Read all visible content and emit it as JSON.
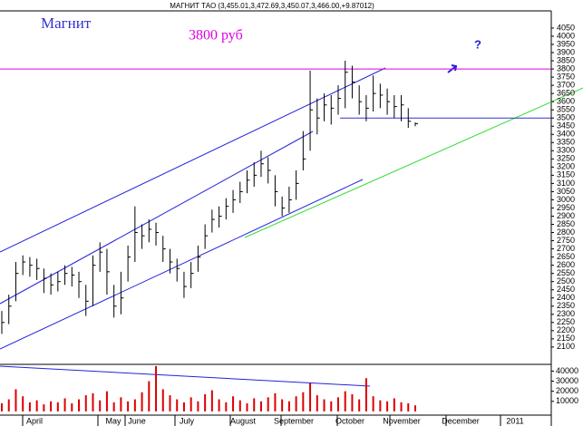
{
  "chart_data": {
    "type": "ohlc",
    "title": "МАГНИТ ТАО (3,455.01,3,472.69,3,450.07,3,466.00,+9.87012)",
    "annotations": [
      "Магнит",
      "3800 руб",
      "?"
    ],
    "resistance": 3800,
    "support": 3500,
    "months": [
      "April",
      "May",
      "June",
      "July",
      "August",
      "September",
      "October",
      "November",
      "December",
      "2011"
    ],
    "high": [
      2320,
      2420,
      2620,
      2660,
      2650,
      2640,
      2580,
      2550,
      2560,
      2600,
      2590,
      2560,
      2480,
      2660,
      2740,
      2700,
      2480,
      2560,
      2720,
      2960,
      2850,
      2880,
      2860,
      2780,
      2700,
      2640,
      2560,
      2620,
      2720,
      2850,
      2940,
      2960,
      3010,
      3060,
      3110,
      3180,
      3230,
      3300,
      3260,
      3150,
      3020,
      3080,
      3180,
      3420,
      3790,
      3620,
      3650,
      3640,
      3700,
      3850,
      3820,
      3700,
      3640,
      3760,
      3710,
      3680,
      3640,
      3640,
      3560,
      3473
    ],
    "low": [
      2180,
      2240,
      2380,
      2540,
      2530,
      2510,
      2430,
      2420,
      2440,
      2480,
      2470,
      2400,
      2290,
      2350,
      2560,
      2420,
      2280,
      2300,
      2500,
      2620,
      2700,
      2740,
      2720,
      2620,
      2550,
      2500,
      2400,
      2460,
      2560,
      2700,
      2800,
      2830,
      2880,
      2920,
      2980,
      3040,
      3080,
      3140,
      3100,
      2960,
      2900,
      2920,
      3000,
      3180,
      3300,
      3400,
      3480,
      3460,
      3520,
      3560,
      3620,
      3520,
      3480,
      3540,
      3560,
      3520,
      3500,
      3480,
      3440,
      3450
    ],
    "close": [
      2250,
      2350,
      2550,
      2620,
      2600,
      2580,
      2520,
      2480,
      2500,
      2550,
      2540,
      2500,
      2380,
      2600,
      2680,
      2560,
      2350,
      2400,
      2650,
      2800,
      2780,
      2820,
      2800,
      2700,
      2620,
      2580,
      2470,
      2550,
      2650,
      2780,
      2880,
      2900,
      2960,
      3000,
      3050,
      3120,
      3150,
      3220,
      3180,
      3050,
      2950,
      3000,
      3100,
      3250,
      3550,
      3500,
      3580,
      3560,
      3620,
      3780,
      3720,
      3600,
      3560,
      3650,
      3640,
      3600,
      3570,
      3580,
      3480,
      3466
    ],
    "volume": [
      8000,
      12000,
      22000,
      15000,
      9000,
      11000,
      7000,
      10000,
      9000,
      13000,
      8000,
      12000,
      16000,
      18000,
      11000,
      20000,
      9000,
      14000,
      10000,
      12000,
      19000,
      30000,
      45000,
      22000,
      16000,
      12000,
      9000,
      14000,
      10000,
      17000,
      21000,
      12000,
      9000,
      15000,
      11000,
      8000,
      13000,
      10000,
      14000,
      18000,
      12000,
      10000,
      15000,
      19000,
      28000,
      16000,
      12000,
      10000,
      14000,
      20000,
      17000,
      12000,
      33000,
      15000,
      11000,
      10000,
      13000,
      9000,
      8000,
      6000
    ],
    "ylim": [
      1994,
      4155
    ],
    "yticks": [
      2100,
      2150,
      2200,
      2250,
      2300,
      2350,
      2400,
      2450,
      2500,
      2550,
      2600,
      2650,
      2700,
      2750,
      2800,
      2850,
      2900,
      2950,
      3000,
      3050,
      3100,
      3150,
      3200,
      3250,
      3300,
      3350,
      3400,
      3450,
      3500,
      3550,
      3600,
      3650,
      3700,
      3750,
      3800,
      3850,
      3900,
      3950,
      4000,
      4050
    ],
    "volume_ylim": [
      -3700,
      46700
    ],
    "volume_yticks": [
      10000,
      20000,
      30000,
      40000
    ],
    "bar_color": "#000000",
    "volume_color": "#dd0000",
    "resistance_color": "#dd00dd",
    "support_color": "#3333cc"
  }
}
